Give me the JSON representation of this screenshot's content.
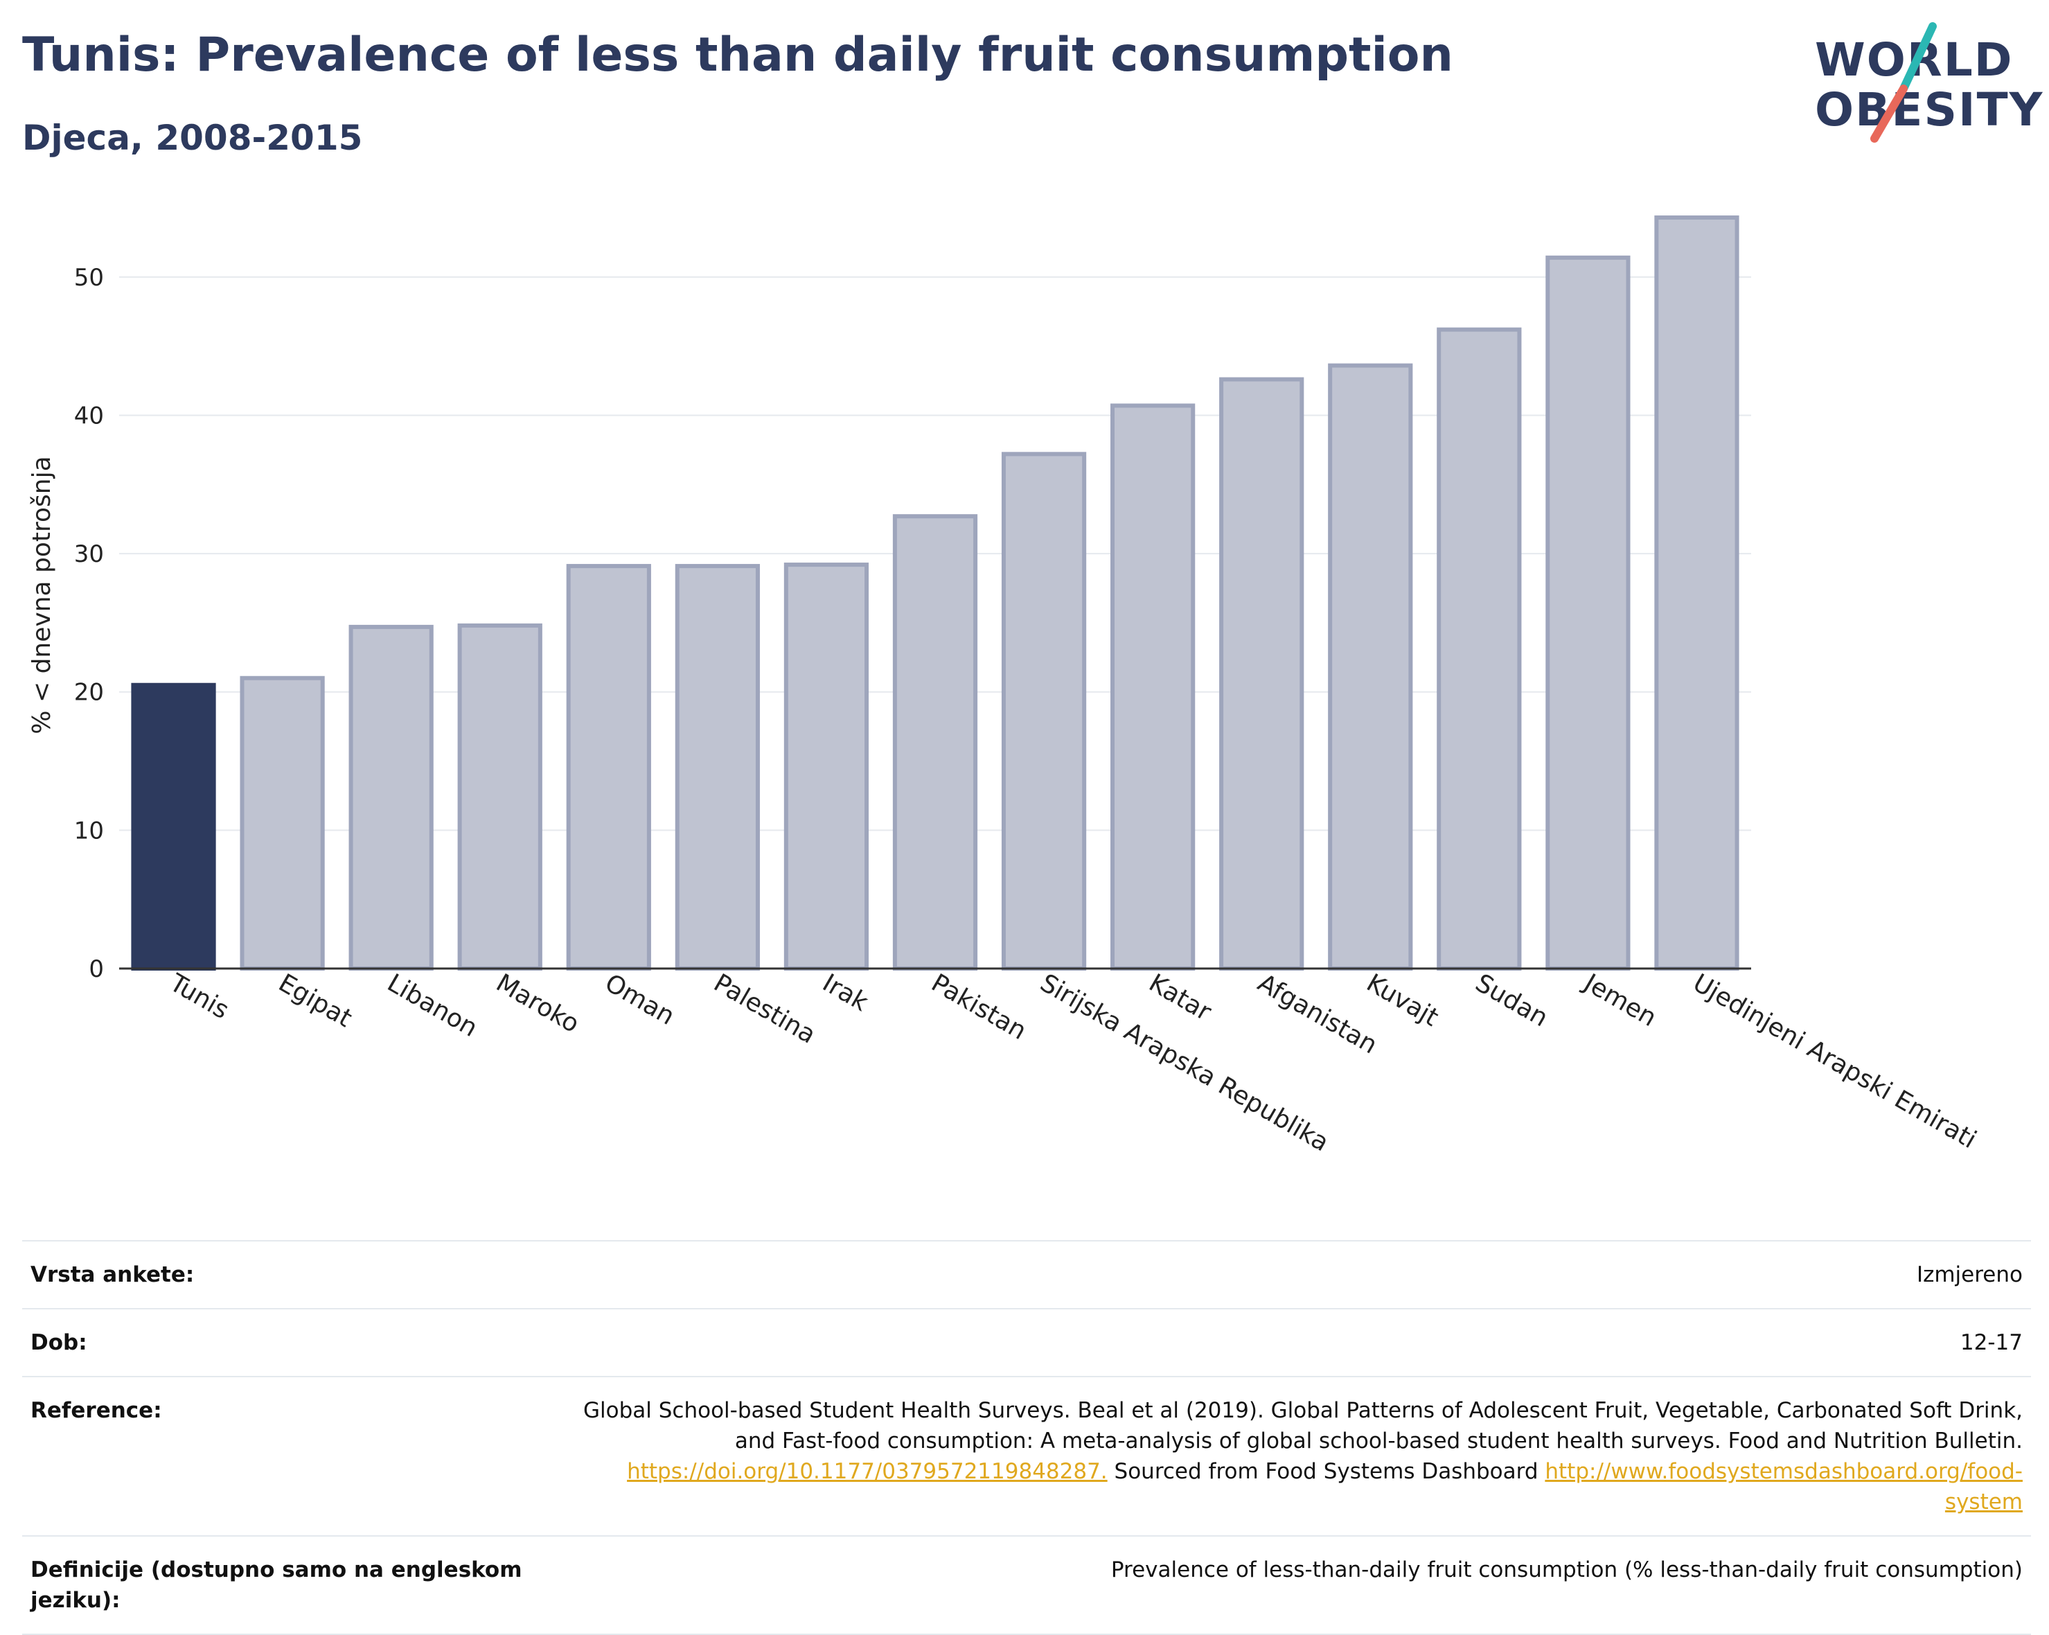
{
  "header": {
    "title": "Tunis: Prevalence of less than daily fruit consumption",
    "subtitle": "Djeca, 2008-2015"
  },
  "logo": {
    "line1": "WORLD",
    "line2": "OBESITY",
    "accent_colors": [
      "#2bb7b3",
      "#e8685a"
    ]
  },
  "chart_data": {
    "type": "bar",
    "ylabel": "% < dnevna potrošnja",
    "ylim": [
      0,
      55
    ],
    "yticks": [
      0,
      10,
      20,
      30,
      40,
      50
    ],
    "grid": true,
    "highlight_color": "#2d3a5e",
    "bar_color": "#bfc3d1",
    "bar_border_color": "#9ea5bc",
    "categories": [
      "Tunis",
      "Egipat",
      "Libanon",
      "Maroko",
      "Oman",
      "Palestina",
      "Irak",
      "Pakistan",
      "Sirijska Arapska Republika",
      "Katar",
      "Afganistan",
      "Kuvajt",
      "Sudan",
      "Jemen",
      "Ujedinjeni Arapski Emirati"
    ],
    "values": [
      20.5,
      21.0,
      24.7,
      24.8,
      29.1,
      29.1,
      29.2,
      32.7,
      37.2,
      40.7,
      42.6,
      43.6,
      46.2,
      51.4,
      54.3
    ],
    "highlight_index": 0
  },
  "info": {
    "rows": [
      {
        "label": "Vrsta ankete:",
        "value": "Izmjereno"
      },
      {
        "label": "Dob:",
        "value": "12-17"
      },
      {
        "label": "Reference:",
        "value_parts": [
          {
            "text": "Global School-based Student Health Surveys. Beal et al (2019). Global Patterns of Adolescent Fruit, Vegetable, Carbonated Soft Drink, and Fast-food consumption: A meta-analysis of global school-based student health surveys. Food and Nutrition Bulletin. "
          },
          {
            "text": "https://doi.org/10.1177/0379572119848287.",
            "link": true
          },
          {
            "text": " Sourced from Food Systems Dashboard "
          },
          {
            "text": "http://www.foodsystemsdashboard.org/food-system",
            "link": true
          }
        ]
      },
      {
        "label": "Definicije (dostupno samo na engleskom jeziku):",
        "value": "Prevalence of less-than-daily fruit consumption (% less-than-daily fruit consumption)"
      }
    ]
  }
}
